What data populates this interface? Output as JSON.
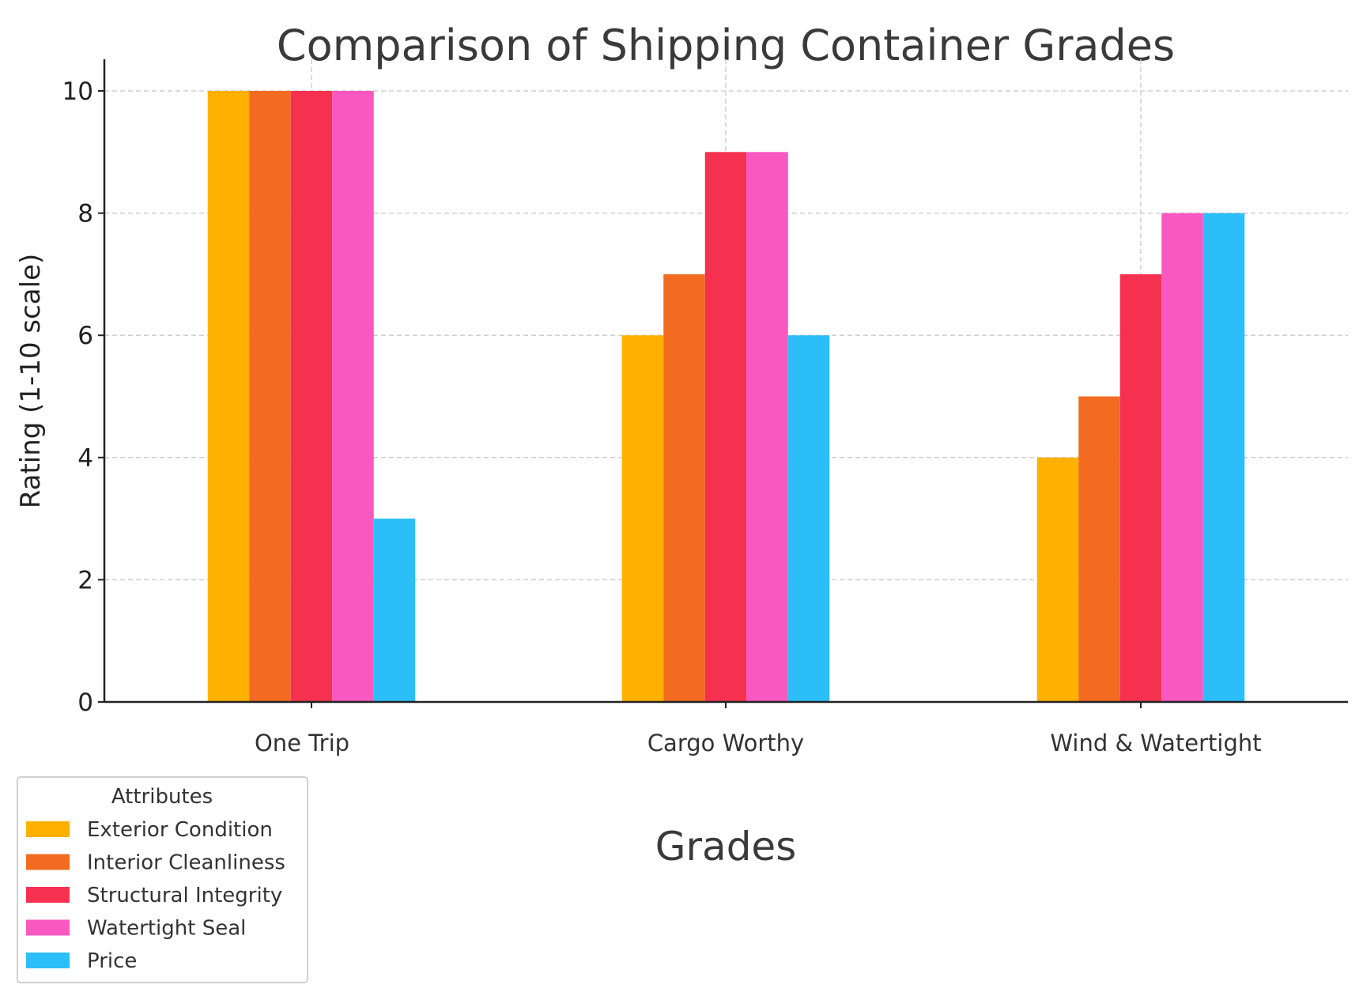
{
  "chart_data": {
    "type": "bar",
    "title": "Comparison of Shipping Container Grades",
    "xlabel": "Grades",
    "ylabel": "Rating (1-10 scale)",
    "ylim": [
      0,
      10.5
    ],
    "yticks": [
      "0",
      "2",
      "4",
      "6",
      "8",
      "10"
    ],
    "grid": true,
    "legend_title": "Attributes",
    "legend_placement": "bottom-left",
    "categories": [
      "One Trip",
      "Cargo Worthy",
      "Wind & Watertight"
    ],
    "series": [
      {
        "name": "Exterior Condition",
        "color": "#FFB000",
        "values": [
          10,
          6,
          4
        ]
      },
      {
        "name": "Interior Cleanliness",
        "color": "#F26B21",
        "values": [
          10,
          7,
          5
        ]
      },
      {
        "name": "Structural Integrity",
        "color": "#F5314F",
        "values": [
          10,
          9,
          7
        ]
      },
      {
        "name": "Watertight Seal",
        "color": "#F958C0",
        "values": [
          10,
          9,
          8
        ]
      },
      {
        "name": "Price",
        "color": "#2BBEF8",
        "values": [
          3,
          6,
          8
        ]
      }
    ]
  }
}
